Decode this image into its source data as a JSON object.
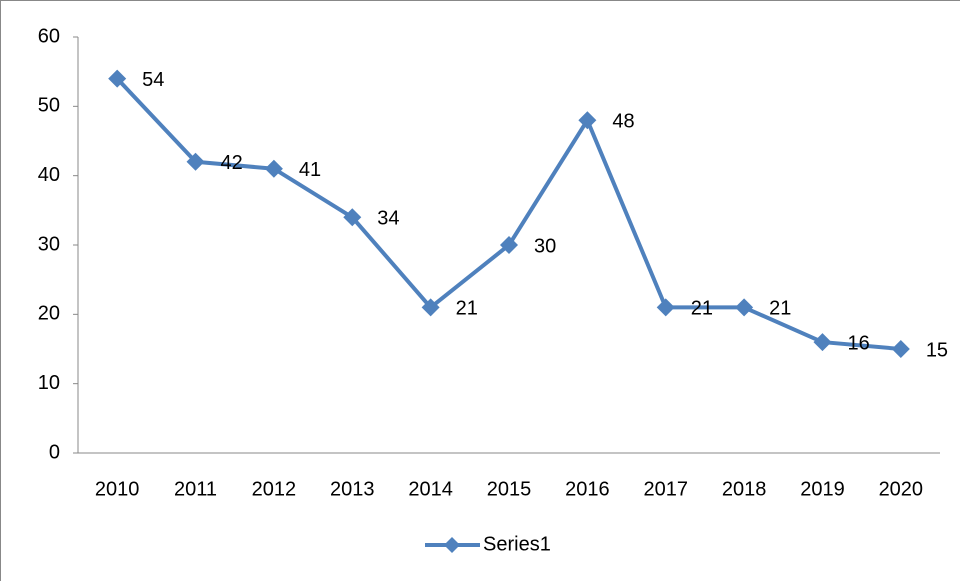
{
  "chart_data": {
    "type": "line",
    "categories": [
      "2010",
      "2011",
      "2012",
      "2013",
      "2014",
      "2015",
      "2016",
      "2017",
      "2018",
      "2019",
      "2020"
    ],
    "series": [
      {
        "name": "Series1",
        "color": "#4f81bd",
        "values": [
          54,
          42,
          41,
          34,
          21,
          30,
          48,
          21,
          21,
          16,
          15
        ]
      }
    ],
    "ylim": [
      0,
      60
    ],
    "yticks": [
      0,
      10,
      20,
      30,
      40,
      50,
      60
    ],
    "grid": false,
    "legend": "bottom",
    "data_labels": true
  }
}
